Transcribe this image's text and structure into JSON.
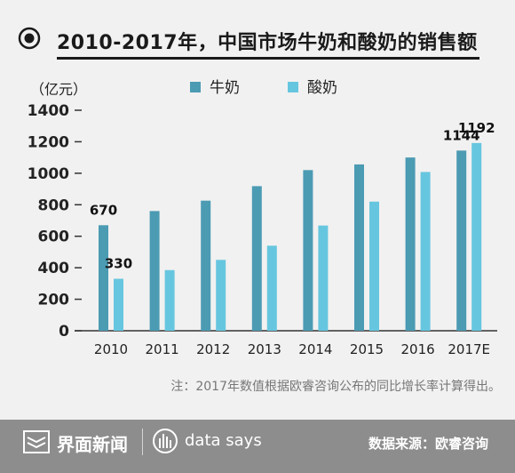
{
  "title": "2010-2017年，中国市场牛奶和酸奶的销售额",
  "note": "注：2017年数值根据欧睿咨询公布的同比增长率计算得出。",
  "footer": {
    "brand": "界面新闻",
    "tagline": "data says",
    "source": "数据来源：欧睿咨询"
  },
  "colors": {
    "milk": "#4b9bb3",
    "yogurt": "#67c6df",
    "axis": "#333333"
  },
  "chart_data": {
    "type": "bar",
    "ylabel": "（亿元）",
    "categories": [
      "2010",
      "2011",
      "2012",
      "2013",
      "2014",
      "2015",
      "2016",
      "2017E"
    ],
    "series": [
      {
        "name": "牛奶",
        "values": [
          670,
          760,
          826,
          918,
          1020,
          1056,
          1100,
          1144
        ]
      },
      {
        "name": "酸奶",
        "values": [
          330,
          385,
          450,
          540,
          668,
          820,
          1008,
          1192
        ]
      }
    ],
    "yticks": [
      0,
      200,
      400,
      600,
      800,
      1000,
      1200,
      1400
    ],
    "ylim": [
      0,
      1400
    ],
    "data_labels": [
      {
        "series": 0,
        "index": 0,
        "text": "670"
      },
      {
        "series": 1,
        "index": 0,
        "text": "330"
      },
      {
        "series": 0,
        "index": 7,
        "text": "1144"
      },
      {
        "series": 1,
        "index": 7,
        "text": "1192"
      }
    ],
    "legend_position": "top-center",
    "grid": false
  }
}
